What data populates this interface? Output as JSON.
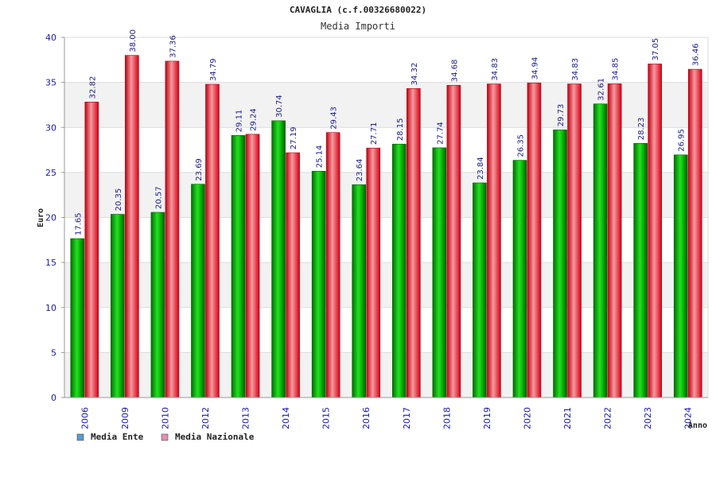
{
  "chart_data": {
    "type": "bar",
    "title": "CAVAGLIA (c.f.00326680022)",
    "subtitle": "Media Importi",
    "xlabel": "Anno",
    "ylabel": "Euro",
    "ylim": [
      0,
      40
    ],
    "yticks": [
      0,
      5,
      10,
      15,
      20,
      25,
      30,
      35,
      40
    ],
    "grid": true,
    "legend_position": "bottom-left",
    "categories": [
      "2006",
      "2009",
      "2010",
      "2012",
      "2013",
      "2014",
      "2015",
      "2016",
      "2017",
      "2018",
      "2019",
      "2020",
      "2021",
      "2022",
      "2023",
      "2024"
    ],
    "series": [
      {
        "name": "Media Ente",
        "color": "#00b400",
        "legend_color": "#5b9bd5",
        "values": [
          17.65,
          20.35,
          20.57,
          23.69,
          29.11,
          30.74,
          25.14,
          23.64,
          28.15,
          27.74,
          23.84,
          26.35,
          29.73,
          32.61,
          28.23,
          26.95
        ],
        "labels": [
          "17.65",
          "20.35",
          "20.57",
          "23.69",
          "29.11",
          "30.74",
          "25.14",
          "23.64",
          "28.15",
          "27.74",
          "23.84",
          "26.35",
          "29.73",
          "32.61",
          "28.23",
          "26.95"
        ]
      },
      {
        "name": "Media Nazionale",
        "color": "#e8202a",
        "legend_color": "#e58fb0",
        "values": [
          32.82,
          38.0,
          37.36,
          34.79,
          29.24,
          27.19,
          29.43,
          27.71,
          34.32,
          34.68,
          34.83,
          34.94,
          34.83,
          34.85,
          37.05,
          36.46
        ],
        "labels": [
          "32.82",
          "38.00",
          "37.36",
          "34.79",
          "29.24",
          "27.19",
          "29.43",
          "27.71",
          "34.32",
          "34.68",
          "34.83",
          "34.94",
          "34.83",
          "34.85",
          "37.05",
          "36.46"
        ]
      }
    ]
  }
}
